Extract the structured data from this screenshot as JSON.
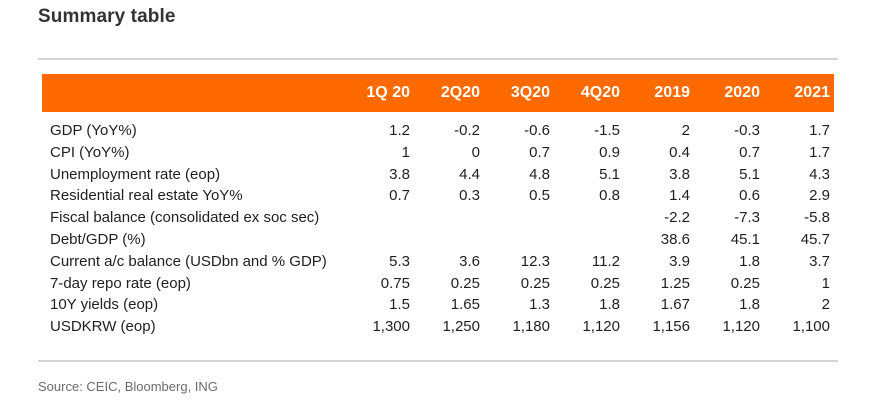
{
  "title": "Summary table",
  "header": {
    "row_label": "",
    "columns": [
      "1Q 20",
      "2Q20",
      "3Q20",
      "4Q20",
      "2019",
      "2020",
      "2021"
    ]
  },
  "rows": [
    {
      "label": "GDP (YoY%)",
      "values": [
        "1.2",
        "-0.2",
        "-0.6",
        "-1.5",
        "2",
        "-0.3",
        "1.7"
      ]
    },
    {
      "label": "CPI (YoY%)",
      "values": [
        "1",
        "0",
        "0.7",
        "0.9",
        "0.4",
        "0.7",
        "1.7"
      ]
    },
    {
      "label": "Unemployment rate (eop)",
      "values": [
        "3.8",
        "4.4",
        "4.8",
        "5.1",
        "3.8",
        "5.1",
        "4.3"
      ]
    },
    {
      "label": "Residential real estate YoY%",
      "values": [
        "0.7",
        "0.3",
        "0.5",
        "0.8",
        "1.4",
        "0.6",
        "2.9"
      ]
    },
    {
      "label": "Fiscal balance (consolidated ex soc sec)",
      "values": [
        "",
        "",
        "",
        "",
        "-2.2",
        "-7.3",
        "-5.8"
      ]
    },
    {
      "label": "Debt/GDP (%)",
      "values": [
        "",
        "",
        "",
        "",
        "38.6",
        "45.1",
        "45.7"
      ]
    },
    {
      "label": "Current a/c balance (USDbn and % GDP)",
      "values": [
        "5.3",
        "3.6",
        "12.3",
        "11.2",
        "3.9",
        "1.8",
        "3.7"
      ]
    },
    {
      "label": "7-day repo rate (eop)",
      "values": [
        "0.75",
        "0.25",
        "0.25",
        "0.25",
        "1.25",
        "0.25",
        "1"
      ]
    },
    {
      "label": "10Y yields (eop)",
      "values": [
        "1.5",
        "1.65",
        "1.3",
        "1.8",
        "1.67",
        "1.8",
        "2"
      ]
    },
    {
      "label": "USDKRW (eop)",
      "values": [
        "1,300",
        "1,250",
        "1,180",
        "1,120",
        "1,156",
        "1,120",
        "1,100"
      ]
    }
  ],
  "source": "Source: CEIC, Bloomberg, ING",
  "colors": {
    "header_background": "#ff6a00",
    "header_text": "#ffffff",
    "rule": "#d4d4d4"
  }
}
